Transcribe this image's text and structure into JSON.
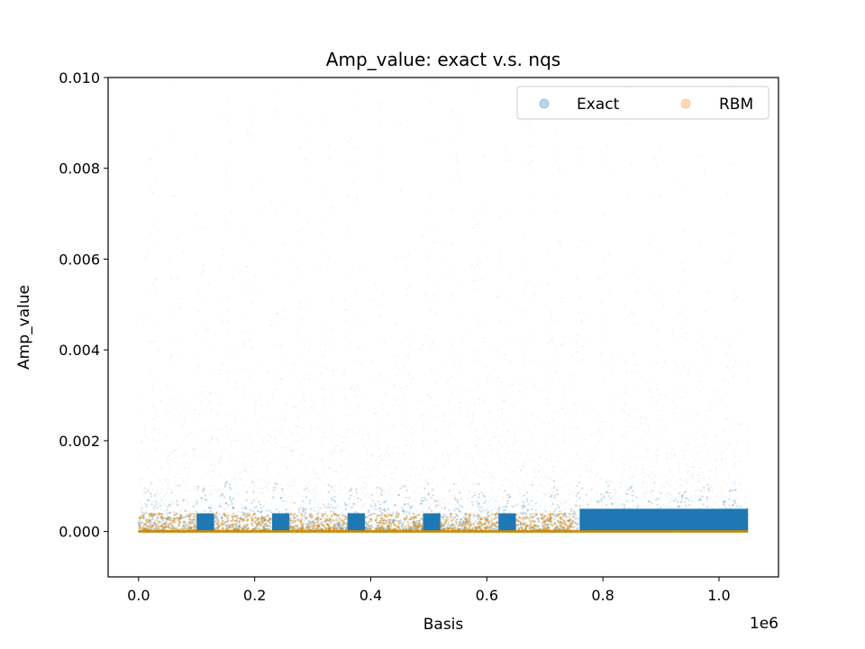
{
  "chart_data": {
    "type": "scatter",
    "title": "Amp_value: exact v.s. nqs",
    "xlabel": "Basis",
    "ylabel": "Amp_value",
    "x_offset_label": "1e6",
    "xlim": [
      -0.0525,
      1.1025
    ],
    "ylim": [
      -0.001,
      0.01
    ],
    "x_ticks": [
      0.0,
      0.2,
      0.4,
      0.6,
      0.8,
      1.0
    ],
    "x_tick_labels": [
      "0.0",
      "0.2",
      "0.4",
      "0.6",
      "0.8",
      "1.0"
    ],
    "y_ticks": [
      0.0,
      0.002,
      0.004,
      0.006,
      0.008,
      0.01
    ],
    "y_tick_labels": [
      "0.000",
      "0.002",
      "0.004",
      "0.006",
      "0.008",
      "0.010"
    ],
    "x_range": [
      0.0,
      1.05
    ],
    "grid": false,
    "legend_position": "upper-right",
    "legend_columns": 2,
    "series": [
      {
        "name": "Exact",
        "color": "#1f77b4",
        "dense_band_max_y": 0.0008,
        "solid_blocks": [
          [
            0.1,
            0.13
          ],
          [
            0.23,
            0.26
          ],
          [
            0.36,
            0.39
          ],
          [
            0.49,
            0.52
          ],
          [
            0.62,
            0.65
          ],
          [
            0.76,
            1.05
          ]
        ],
        "spike_peaks_y": 0.0095
      },
      {
        "name": "RBM",
        "color": "#ff7f0e",
        "dense_band_max_y": 0.0004,
        "bright_regions": [
          [
            0.12,
            0.2
          ],
          [
            0.25,
            0.38
          ],
          [
            0.5,
            0.62
          ],
          [
            0.63,
            0.74
          ]
        ],
        "spike_peaks_y": 0.01
      }
    ]
  }
}
